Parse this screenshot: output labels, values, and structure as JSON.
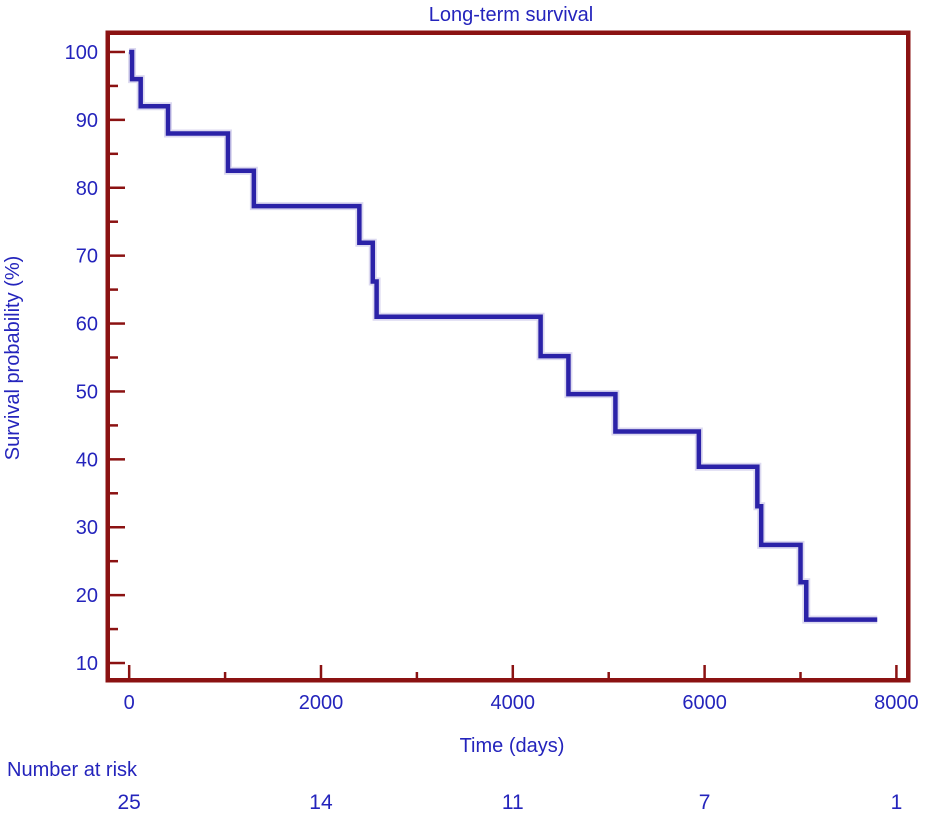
{
  "title": "Long-term survival",
  "chart_data": {
    "type": "line",
    "subtype": "kaplan-meier-step-curve",
    "title": "Long-term survival",
    "xlabel": "Time (days)",
    "ylabel": "Survival probability (%)",
    "xlim": [
      -200,
      8100
    ],
    "ylim": [
      7.5,
      102.5
    ],
    "x_major_ticks": [
      0,
      2000,
      4000,
      6000,
      8000
    ],
    "x_minor_ticks": [
      1000,
      3000,
      5000,
      7000
    ],
    "y_major_ticks": [
      10,
      20,
      30,
      40,
      50,
      60,
      70,
      80,
      90,
      100
    ],
    "y_minor_ticks": [
      15,
      25,
      35,
      45,
      55,
      65,
      75,
      85,
      95
    ],
    "grid": false,
    "legend": false,
    "series": [
      {
        "name": "Survival probability",
        "steps": [
          {
            "t": 0,
            "s": 100
          },
          {
            "t": 30,
            "s": 96.0
          },
          {
            "t": 120,
            "s": 92.0
          },
          {
            "t": 405,
            "s": 88.0
          },
          {
            "t": 1030,
            "s": 82.5
          },
          {
            "t": 1300,
            "s": 77.3
          },
          {
            "t": 2400,
            "s": 71.9
          },
          {
            "t": 2540,
            "s": 66.2
          },
          {
            "t": 2580,
            "s": 61.0
          },
          {
            "t": 4290,
            "s": 55.2
          },
          {
            "t": 4580,
            "s": 49.6
          },
          {
            "t": 5070,
            "s": 44.1
          },
          {
            "t": 5940,
            "s": 38.9
          },
          {
            "t": 6550,
            "s": 33.1
          },
          {
            "t": 6590,
            "s": 27.4
          },
          {
            "t": 7000,
            "s": 21.9
          },
          {
            "t": 7060,
            "s": 16.4
          }
        ],
        "end_time": 7800
      }
    ]
  },
  "number_at_risk": {
    "label": "Number at risk",
    "times": [
      0,
      2000,
      4000,
      6000,
      8000
    ],
    "values": [
      25,
      14,
      11,
      7,
      1
    ]
  },
  "colors": {
    "curve": "#2b22a8",
    "curve_halo": "#dcd9f0",
    "frame": "#8b1212",
    "text": "#2424bc",
    "background": "#ffffff"
  }
}
